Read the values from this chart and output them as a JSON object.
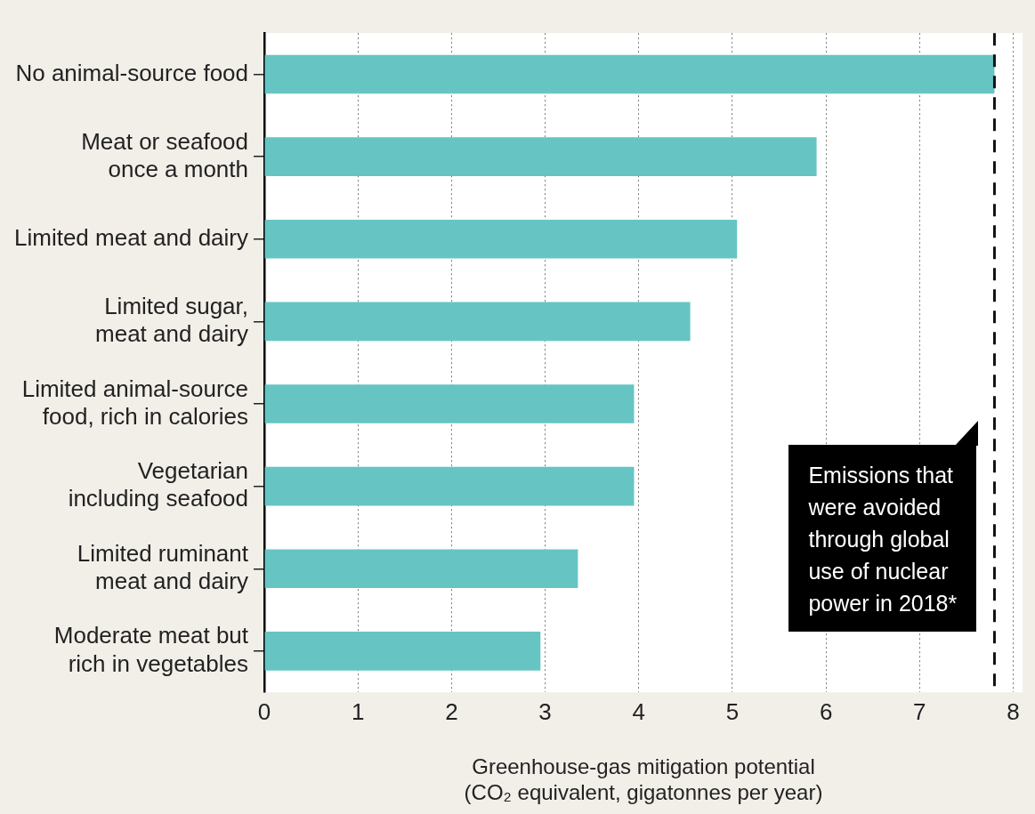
{
  "chart_data": {
    "type": "bar",
    "orientation": "horizontal",
    "categories": [
      "No animal-source food",
      "Meat or seafood once a month",
      "Limited meat and dairy",
      "Limited sugar, meat and dairy",
      "Limited animal-source food, rich in calories",
      "Vegetarian including seafood",
      "Limited ruminant meat and dairy",
      "Moderate meat but rich in vegetables"
    ],
    "values": [
      7.8,
      5.9,
      5.05,
      4.55,
      3.95,
      3.95,
      3.35,
      2.95
    ],
    "color": "#66c5c3",
    "xlim": [
      0,
      8.1
    ],
    "xticks": [
      0,
      1,
      2,
      3,
      4,
      5,
      6,
      7,
      8
    ],
    "grid": "x",
    "xlabel": "Greenhouse-gas mitigation potential (CO₂ equivalent, gigatonnes per year)",
    "ref_lines": [
      {
        "axis": "x",
        "value": 7.8,
        "label": "Emissions that were avoided through global use of nuclear power in 2018*",
        "line_style": "dashed",
        "color": "#111111"
      }
    ]
  }
}
